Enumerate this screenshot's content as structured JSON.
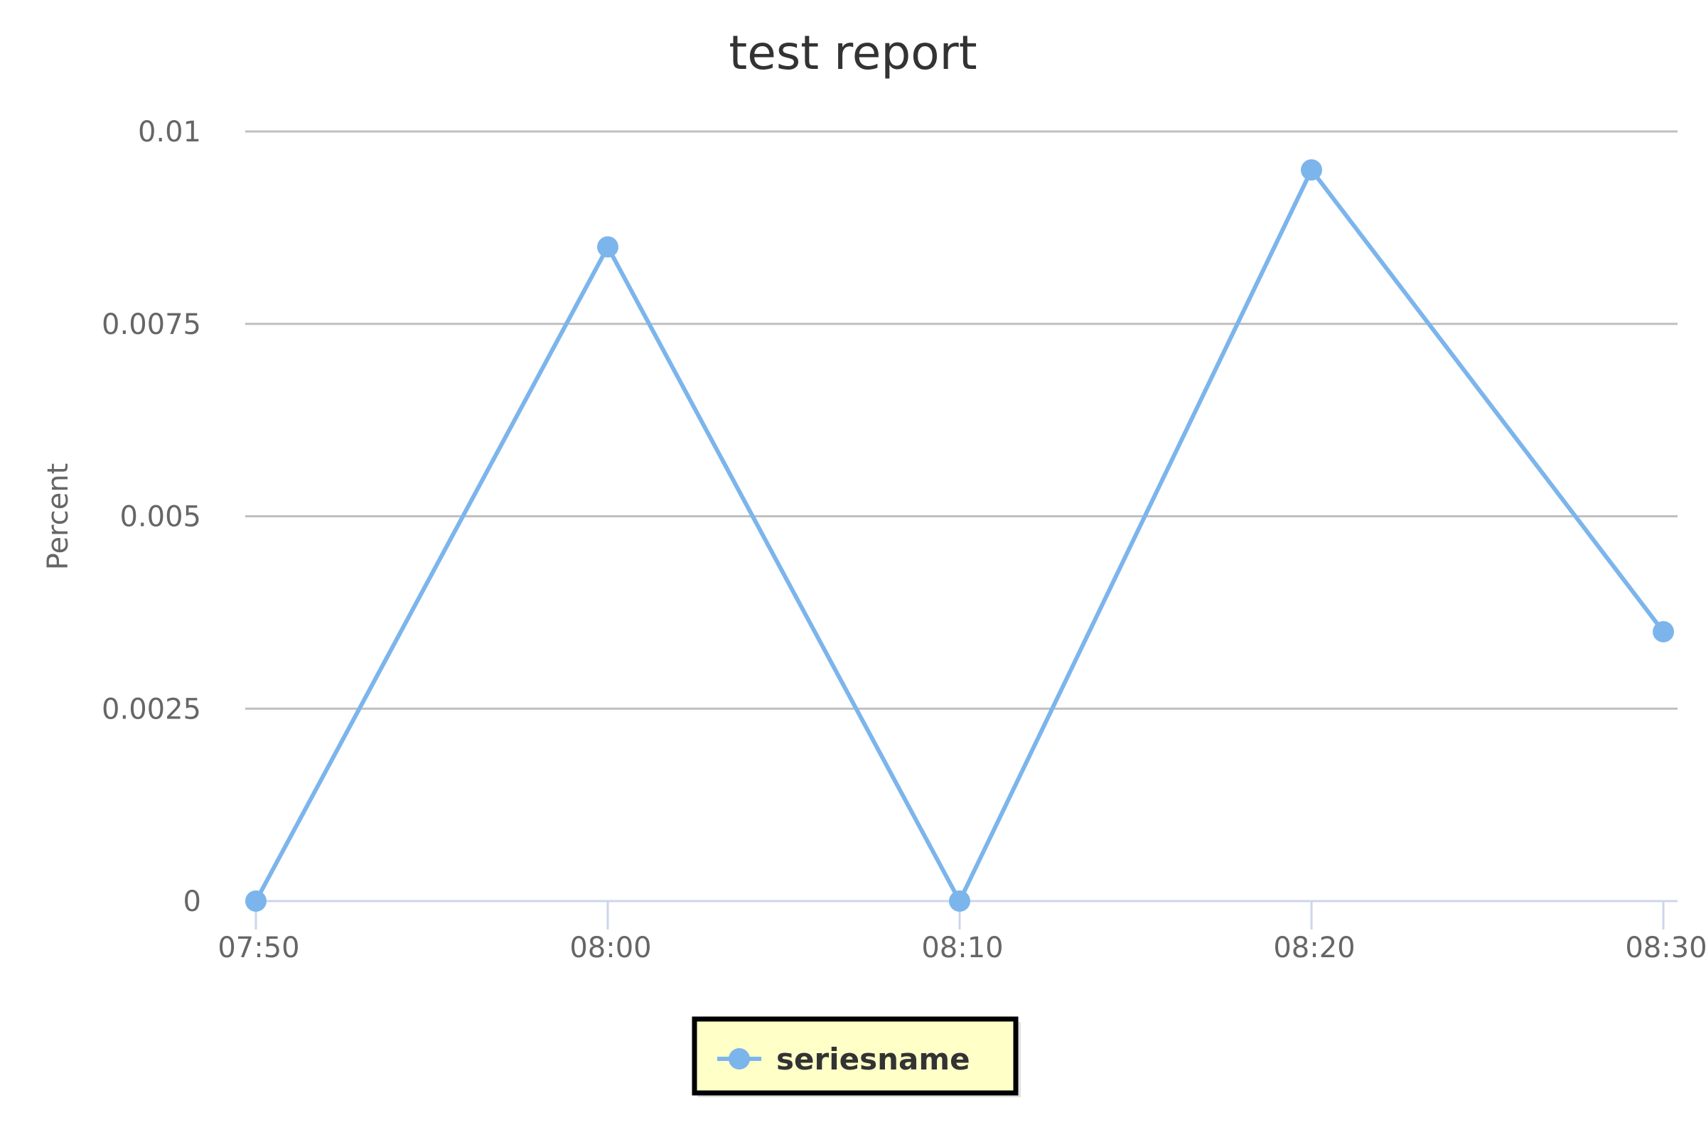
{
  "chart_data": {
    "type": "line",
    "title": "test report",
    "ylabel": "Percent",
    "xlabel": "",
    "categories": [
      "07:50",
      "08:00",
      "08:10",
      "08:20",
      "08:30"
    ],
    "y_ticks": [
      "0",
      "0.0025",
      "0.005",
      "0.0075",
      "0.01"
    ],
    "y_tick_values": [
      0,
      0.0025,
      0.005,
      0.0075,
      0.01
    ],
    "ylim": [
      0,
      0.01
    ],
    "series": [
      {
        "name": "seriesname",
        "values": [
          0,
          0.0085,
          0,
          0.0095,
          0.0035
        ],
        "color": "#7cb5ec"
      }
    ],
    "grid": true,
    "legend": {
      "placement": "bottom-center",
      "background": "#ffffc8",
      "border": "#000000"
    }
  }
}
